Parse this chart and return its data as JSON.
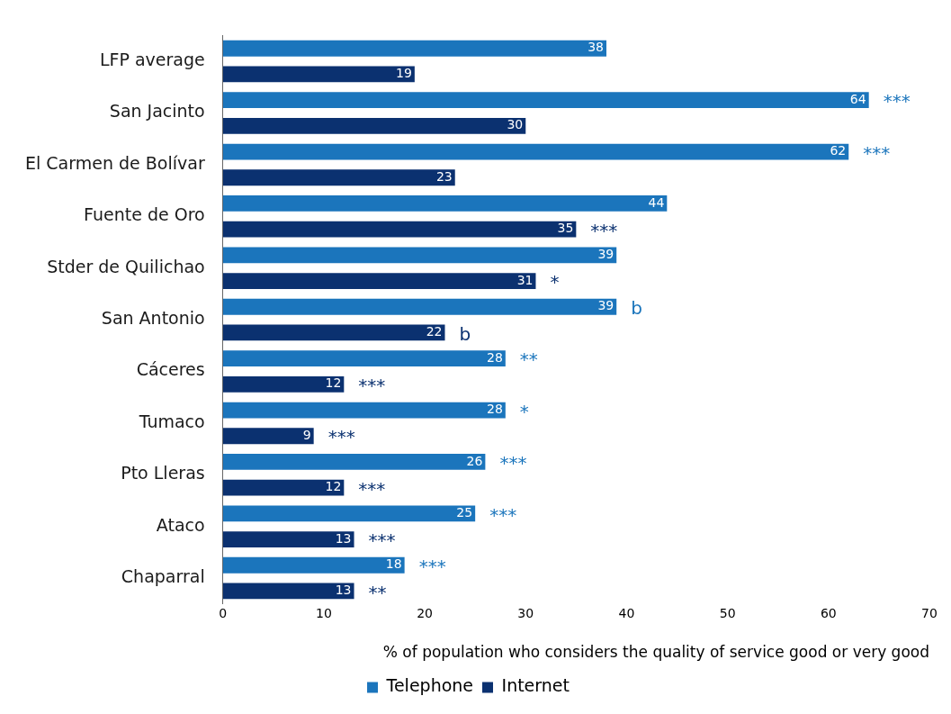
{
  "chart_data": {
    "type": "bar",
    "orientation": "horizontal",
    "categories": [
      "LFP average",
      "San Jacinto",
      "El Carmen de Bolívar",
      "Fuente de Oro",
      "Stder de Quilichao",
      "San Antonio",
      "Cáceres",
      "Tumaco",
      "Pto Lleras",
      "Ataco",
      "Chaparral"
    ],
    "series": [
      {
        "name": "Telephone",
        "color": "#1b75bc",
        "values": [
          38,
          64,
          62,
          44,
          39,
          39,
          28,
          28,
          26,
          25,
          18
        ]
      },
      {
        "name": "Internet",
        "color": "#0b3170",
        "values": [
          19,
          30,
          23,
          35,
          31,
          22,
          12,
          9,
          12,
          13,
          13
        ]
      }
    ],
    "xlim": [
      0,
      70
    ],
    "xticks": [
      0,
      10,
      20,
      30,
      40,
      50,
      60,
      70
    ],
    "xlabel": "% of population who considers the quality of service good or very good",
    "data_labels": true,
    "grid": false,
    "legend": "bottom",
    "annotations": [
      {
        "text": "***",
        "x": 64,
        "y": "San Jacinto"
      },
      {
        "text": "***",
        "x": 62,
        "y": "El Carmen de Bolívar"
      },
      {
        "text": "***",
        "x": 35,
        "y": "Fuente de Oro"
      },
      {
        "text": "*",
        "x": 31,
        "y": "Stder de Quilichao"
      },
      {
        "text": "b",
        "x": 39,
        "y": "San Antonio"
      },
      {
        "text": "b",
        "x": 22,
        "y": "San Antonio"
      },
      {
        "text": "**",
        "x": 28,
        "y": "Cáceres"
      },
      {
        "text": "***",
        "x": 12,
        "y": "Cáceres"
      },
      {
        "text": "*",
        "x": 28,
        "y": "Tumaco"
      },
      {
        "text": "***",
        "x": 9,
        "y": "Tumaco"
      },
      {
        "text": "***",
        "x": 26,
        "y": "Pto Lleras"
      },
      {
        "text": "***",
        "x": 12,
        "y": "Pto Lleras"
      },
      {
        "text": "***",
        "x": 25,
        "y": "Ataco"
      },
      {
        "text": "***",
        "x": 13,
        "y": "Ataco"
      },
      {
        "text": "***",
        "x": 18,
        "y": "Chaparral"
      },
      {
        "text": "**",
        "x": 13,
        "y": "Chaparral"
      }
    ]
  }
}
